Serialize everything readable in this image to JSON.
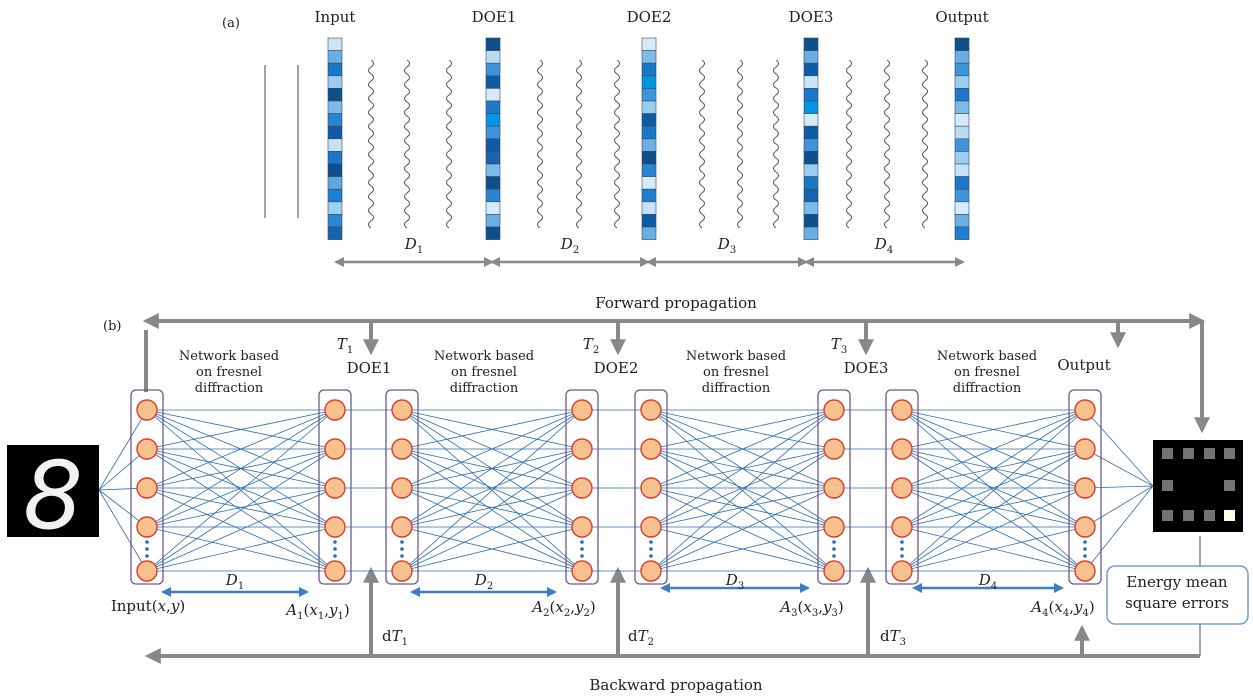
{
  "panel_a": {
    "label": "(a)",
    "layers": [
      {
        "title": "Input",
        "colors": [
          "#cde6f7",
          "#6aaee4",
          "#1b78c8",
          "#9bcdf0",
          "#0d4f8b",
          "#7cbbe8",
          "#2985d0",
          "#0f5ca3",
          "#c6e2f7",
          "#1b78c8",
          "#0d4f8b",
          "#5ea9e0",
          "#1e7fcf",
          "#9ed0f2",
          "#2a88d3",
          "#1763ad"
        ]
      },
      {
        "title": "DOE1",
        "colors": [
          "#0d4f8b",
          "#b9dcf4",
          "#3c95db",
          "#0f5ca3",
          "#d6ebf9",
          "#1b78c8",
          "#0096e0",
          "#3c95db",
          "#0f5ca3",
          "#1763ad",
          "#7cbbe8",
          "#0d4f8b",
          "#2985d0",
          "#d6ebf9",
          "#6aaee4",
          "#0d4f8b"
        ]
      },
      {
        "title": "DOE2",
        "colors": [
          "#d6ebf9",
          "#7cbbe8",
          "#1b78c8",
          "#0096e0",
          "#3c95db",
          "#9bcdf0",
          "#0f5ca3",
          "#1b78c8",
          "#6aaee4",
          "#0d4f8b",
          "#2985d0",
          "#d6ebf9",
          "#1e7fcf",
          "#c6e2f7",
          "#0f5ca3",
          "#6aaee4"
        ]
      },
      {
        "title": "DOE3",
        "colors": [
          "#0d4f8b",
          "#6aaee4",
          "#0f5ca3",
          "#cde6f7",
          "#1b78c8",
          "#0096e0",
          "#d6ebf9",
          "#0f5ca3",
          "#3c95db",
          "#0d4f8b",
          "#9bcdf0",
          "#1b78c8",
          "#1763ad",
          "#7cbbe8",
          "#0d4f8b",
          "#6aaee4"
        ]
      },
      {
        "title": "Output",
        "colors": [
          "#0d4f8b",
          "#6aaee4",
          "#3c95db",
          "#9bcdf0",
          "#1b78c8",
          "#7cbbe8",
          "#d6ebf9",
          "#b9dcf4",
          "#3c95db",
          "#9bcdf0",
          "#c6e2f7",
          "#1b78c8",
          "#3c95db",
          "#d6ebf9",
          "#6aaee4",
          "#1e7fcf"
        ]
      }
    ],
    "distances": [
      "D1",
      "D2",
      "D3",
      "D4"
    ]
  },
  "panel_b": {
    "label": "(b)",
    "forward_label": "Forward propagation",
    "backward_label": "Backward propagation",
    "network_label_lines": [
      "Network based",
      "on fresnel",
      "diffraction"
    ],
    "doe_labels": [
      "DOE1",
      "DOE2",
      "DOE3"
    ],
    "output_label": "Output",
    "transmittance_labels": [
      "T1",
      "T2",
      "T3"
    ],
    "gradient_labels": [
      "dT1",
      "dT2",
      "dT3"
    ],
    "distance_labels": [
      "D1",
      "D2",
      "D3",
      "D4"
    ],
    "input_plane_label": "Input(x,y)",
    "plane_labels": [
      "A1(x1,y1)",
      "A2(x2,y2)",
      "A3(x3,y3)",
      "A4(x4,y4)"
    ],
    "loss_label_lines": [
      "Energy mean",
      "square errors"
    ],
    "input_digit": "8",
    "output_cells": [
      0.35,
      0.35,
      0.35,
      0.35,
      0.35,
      0,
      0,
      0.35,
      0.35,
      0.35,
      0.35,
      1.0
    ]
  },
  "colors": {
    "arrow_gray": "#888888",
    "line_blue": "#2e6db3",
    "node_fill": "#f7c08f",
    "node_stroke": "#e03a2c",
    "frame_stroke": "#6b5a8e",
    "dim_arrow_blue": "#3d7fc4",
    "loss_box_stroke": "#5b8fd0"
  }
}
